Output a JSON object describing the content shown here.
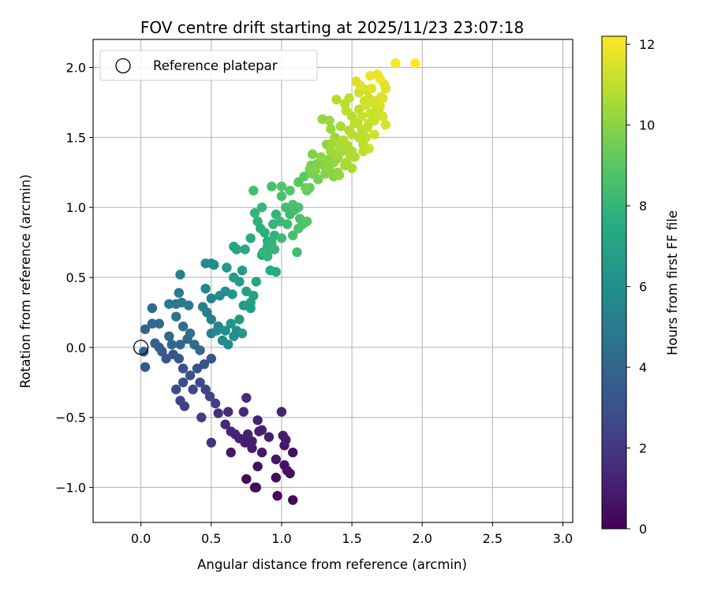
{
  "chart_data": {
    "type": "scatter",
    "title": "FOV centre drift starting at 2025/11/23 23:07:18",
    "xlabel": "Angular distance from reference (arcmin)",
    "ylabel": "Rotation from reference (arcmin)",
    "xlim": [
      -0.34,
      3.07
    ],
    "ylim": [
      -1.25,
      2.2
    ],
    "xticks": [
      0.0,
      0.5,
      1.0,
      1.5,
      2.0,
      2.5,
      3.0
    ],
    "xtick_labels": [
      "0.0",
      "0.5",
      "1.0",
      "1.5",
      "2.0",
      "2.5",
      "3.0"
    ],
    "yticks": [
      -1.0,
      -0.5,
      0.0,
      0.5,
      1.0,
      1.5,
      2.0
    ],
    "ytick_labels": [
      "−1.0",
      "−0.5",
      "0.0",
      "0.5",
      "1.0",
      "1.5",
      "2.0"
    ],
    "grid": true,
    "legend": {
      "placement": "top-left",
      "entries": [
        {
          "label": "Reference platepar",
          "marker": "open-circle"
        }
      ]
    },
    "reference_point": {
      "x": 0.0,
      "y": 0.0
    },
    "colorbar": {
      "label": "Hours from first FF file",
      "colormap": "viridis",
      "range": [
        0,
        12.2
      ],
      "ticks": [
        0,
        2,
        4,
        6,
        8,
        10,
        12
      ],
      "tick_labels": [
        "0",
        "2",
        "4",
        "6",
        "8",
        "10",
        "12"
      ]
    },
    "points": [
      [
        0.75,
        -0.94,
        0.3
      ],
      [
        0.81,
        -1.0,
        0.4
      ],
      [
        0.83,
        -0.85,
        0.5
      ],
      [
        0.97,
        -1.06,
        0.3
      ],
      [
        1.08,
        -1.09,
        0.2
      ],
      [
        0.96,
        -0.93,
        0.4
      ],
      [
        1.06,
        -0.9,
        0.5
      ],
      [
        1.02,
        -0.84,
        0.6
      ],
      [
        0.96,
        -0.8,
        0.7
      ],
      [
        1.04,
        -0.88,
        0.6
      ],
      [
        1.08,
        -0.75,
        0.5
      ],
      [
        1.02,
        -0.7,
        0.8
      ],
      [
        1.03,
        -0.66,
        0.9
      ],
      [
        1.01,
        -0.63,
        1.0
      ],
      [
        0.91,
        -0.64,
        1.0
      ],
      [
        0.84,
        -0.6,
        1.1
      ],
      [
        0.86,
        -0.75,
        0.8
      ],
      [
        0.79,
        -0.72,
        0.9
      ],
      [
        0.79,
        -0.67,
        1.0
      ],
      [
        0.74,
        -0.68,
        1.0
      ],
      [
        0.7,
        -0.65,
        1.1
      ],
      [
        0.67,
        -0.62,
        1.2
      ],
      [
        0.64,
        -0.6,
        1.3
      ],
      [
        0.64,
        -0.75,
        0.8
      ],
      [
        0.6,
        -0.55,
        1.4
      ],
      [
        0.55,
        -0.47,
        1.6
      ],
      [
        0.62,
        -0.46,
        1.5
      ],
      [
        0.73,
        -0.46,
        1.4
      ],
      [
        0.75,
        -0.36,
        1.5
      ],
      [
        0.83,
        -0.52,
        1.2
      ],
      [
        0.86,
        -0.59,
        1.1
      ],
      [
        1.0,
        -0.46,
        1.2
      ],
      [
        0.82,
        -1.0,
        0.35
      ],
      [
        0.76,
        -0.62,
        1.15
      ],
      [
        0.5,
        -0.68,
        1.8
      ],
      [
        0.53,
        -0.4,
        2.3
      ],
      [
        0.49,
        -0.35,
        2.5
      ],
      [
        0.43,
        -0.5,
        2.2
      ],
      [
        0.37,
        -0.3,
        2.6
      ],
      [
        0.31,
        -0.42,
        2.3
      ],
      [
        0.28,
        -0.38,
        2.5
      ],
      [
        0.25,
        -0.3,
        2.7
      ],
      [
        0.3,
        -0.25,
        2.9
      ],
      [
        0.35,
        -0.2,
        3.0
      ],
      [
        0.4,
        -0.15,
        3.1
      ],
      [
        0.45,
        -0.12,
        3.2
      ],
      [
        0.5,
        -0.08,
        3.3
      ],
      [
        0.42,
        -0.25,
        2.8
      ],
      [
        0.46,
        -0.3,
        2.6
      ],
      [
        0.3,
        -0.15,
        3.0
      ],
      [
        0.27,
        -0.08,
        3.2
      ],
      [
        0.23,
        -0.05,
        3.3
      ],
      [
        0.18,
        -0.08,
        3.3
      ],
      [
        0.15,
        -0.03,
        3.5
      ],
      [
        0.13,
        0.0,
        3.6
      ],
      [
        0.1,
        0.03,
        3.7
      ],
      [
        0.03,
        -0.14,
        3.4
      ],
      [
        0.02,
        -0.03,
        3.8
      ],
      [
        0.03,
        0.13,
        4.0
      ],
      [
        0.08,
        0.17,
        4.1
      ],
      [
        0.13,
        0.17,
        4.2
      ],
      [
        0.08,
        0.28,
        4.3
      ],
      [
        0.2,
        0.08,
        4.1
      ],
      [
        0.22,
        0.02,
        4.0
      ],
      [
        0.28,
        0.02,
        4.1
      ],
      [
        0.33,
        0.06,
        4.2
      ],
      [
        0.38,
        0.02,
        4.2
      ],
      [
        0.42,
        -0.02,
        4.1
      ],
      [
        0.35,
        0.1,
        4.4
      ],
      [
        0.3,
        0.15,
        4.5
      ],
      [
        0.25,
        0.22,
        4.6
      ],
      [
        0.29,
        0.32,
        4.8
      ],
      [
        0.25,
        0.31,
        4.9
      ],
      [
        0.27,
        0.39,
        5.0
      ],
      [
        0.34,
        0.3,
        5.0
      ],
      [
        0.28,
        0.52,
        5.2
      ],
      [
        0.2,
        0.31,
        4.9
      ],
      [
        0.47,
        0.25,
        5.2
      ],
      [
        0.5,
        0.35,
        5.4
      ],
      [
        0.46,
        0.42,
        5.5
      ],
      [
        0.44,
        0.29,
        5.3
      ],
      [
        0.5,
        0.2,
        5.3
      ],
      [
        0.55,
        0.15,
        5.5
      ],
      [
        0.5,
        0.1,
        5.2
      ],
      [
        0.46,
        0.6,
        5.8
      ],
      [
        0.5,
        0.6,
        5.9
      ],
      [
        0.52,
        0.59,
        6.0
      ],
      [
        0.6,
        0.4,
        6.2
      ],
      [
        0.65,
        0.38,
        6.3
      ],
      [
        0.56,
        0.37,
        6.0
      ],
      [
        0.61,
        0.57,
        6.4
      ],
      [
        0.66,
        0.5,
        6.5
      ],
      [
        0.7,
        0.47,
        6.6
      ],
      [
        0.72,
        0.55,
        6.7
      ],
      [
        0.75,
        0.4,
        6.8
      ],
      [
        0.78,
        0.32,
        6.9
      ],
      [
        0.8,
        0.37,
        6.9
      ],
      [
        0.78,
        0.28,
        6.8
      ],
      [
        0.7,
        0.2,
        6.5
      ],
      [
        0.64,
        0.17,
        6.2
      ],
      [
        0.6,
        0.12,
        6.0
      ],
      [
        0.58,
        0.05,
        5.8
      ],
      [
        0.54,
        0.12,
        5.7
      ],
      [
        0.62,
        0.02,
        5.8
      ],
      [
        0.68,
        0.12,
        6.2
      ],
      [
        0.72,
        0.1,
        6.4
      ],
      [
        0.66,
        0.08,
        6.0
      ],
      [
        0.73,
        0.3,
        6.6
      ],
      [
        0.82,
        0.47,
        7.1
      ],
      [
        0.86,
        0.66,
        7.3
      ],
      [
        0.92,
        0.55,
        7.4
      ],
      [
        0.96,
        0.54,
        7.5
      ],
      [
        0.92,
        0.7,
        7.6
      ],
      [
        0.9,
        0.76,
        7.6
      ],
      [
        0.88,
        0.82,
        7.6
      ],
      [
        0.78,
        0.78,
        7.4
      ],
      [
        0.74,
        0.7,
        7.3
      ],
      [
        0.68,
        0.7,
        7.2
      ],
      [
        0.66,
        0.72,
        7.2
      ],
      [
        0.83,
        0.9,
        7.8
      ],
      [
        0.85,
        0.85,
        7.7
      ],
      [
        0.9,
        0.72,
        7.7
      ],
      [
        0.95,
        0.8,
        7.9
      ],
      [
        0.96,
        0.95,
        8.0
      ],
      [
        0.99,
        0.9,
        8.2
      ],
      [
        1.04,
        0.88,
        8.3
      ],
      [
        1.06,
        0.95,
        8.4
      ],
      [
        1.03,
        1.0,
        8.5
      ],
      [
        1.08,
        1.02,
        8.6
      ],
      [
        1.12,
        1.0,
        8.7
      ],
      [
        1.13,
        0.92,
        8.7
      ],
      [
        1.15,
        0.88,
        8.8
      ],
      [
        1.18,
        0.9,
        8.9
      ],
      [
        1.12,
        0.85,
        8.7
      ],
      [
        1.08,
        0.8,
        8.5
      ],
      [
        1.0,
        0.78,
        8.3
      ],
      [
        0.95,
        0.7,
        8.1
      ],
      [
        0.9,
        0.65,
        8.0
      ],
      [
        0.87,
        0.68,
        8.0
      ],
      [
        0.93,
        0.75,
        8.0
      ],
      [
        1.11,
        0.68,
        8.4
      ],
      [
        1.0,
        1.15,
        8.8
      ],
      [
        1.06,
        1.12,
        8.9
      ],
      [
        1.12,
        1.18,
        9.0
      ],
      [
        1.16,
        1.22,
        9.1
      ],
      [
        1.2,
        1.14,
        9.2
      ],
      [
        1.18,
        1.12,
        9.2
      ],
      [
        1.0,
        1.08,
        8.6
      ],
      [
        0.93,
        1.15,
        8.6
      ],
      [
        0.8,
        1.12,
        8.5
      ],
      [
        0.86,
        1.0,
        8.1
      ],
      [
        0.81,
        0.96,
        8.0
      ],
      [
        1.09,
        0.98,
        8.5
      ],
      [
        0.94,
        0.88,
        8.0
      ],
      [
        1.17,
        1.14,
        9.5
      ],
      [
        1.22,
        1.24,
        9.6
      ],
      [
        1.2,
        1.27,
        9.7
      ],
      [
        1.21,
        1.3,
        9.7
      ],
      [
        1.25,
        1.31,
        9.8
      ],
      [
        1.22,
        1.38,
        9.8
      ],
      [
        1.26,
        1.2,
        9.6
      ],
      [
        1.3,
        1.3,
        9.9
      ],
      [
        1.33,
        1.34,
        10.0
      ],
      [
        1.32,
        1.45,
        10.1
      ],
      [
        1.29,
        1.63,
        10.2
      ],
      [
        1.34,
        1.62,
        10.3
      ],
      [
        1.35,
        1.56,
        10.3
      ],
      [
        1.38,
        1.5,
        10.4
      ],
      [
        1.37,
        1.22,
        10.0
      ],
      [
        1.4,
        1.25,
        10.1
      ],
      [
        1.4,
        1.35,
        10.3
      ],
      [
        1.45,
        1.3,
        10.5
      ],
      [
        1.43,
        1.4,
        10.5
      ],
      [
        1.47,
        1.44,
        10.6
      ],
      [
        1.5,
        1.4,
        10.7
      ],
      [
        1.42,
        1.58,
        10.6
      ],
      [
        1.48,
        1.55,
        10.7
      ],
      [
        1.5,
        1.65,
        10.8
      ],
      [
        1.52,
        1.6,
        10.9
      ],
      [
        1.55,
        1.7,
        11.0
      ],
      [
        1.57,
        1.55,
        11.0
      ],
      [
        1.6,
        1.5,
        11.1
      ],
      [
        1.62,
        1.6,
        11.2
      ],
      [
        1.58,
        1.45,
        11.0
      ],
      [
        1.5,
        1.28,
        10.6
      ],
      [
        1.46,
        1.32,
        10.6
      ],
      [
        1.39,
        1.77,
        10.8
      ],
      [
        1.45,
        1.74,
        10.9
      ],
      [
        1.48,
        1.78,
        11.0
      ],
      [
        1.55,
        1.82,
        11.2
      ],
      [
        1.6,
        1.84,
        11.3
      ],
      [
        1.62,
        1.78,
        11.3
      ],
      [
        1.65,
        1.75,
        11.4
      ],
      [
        1.67,
        1.7,
        11.4
      ],
      [
        1.7,
        1.72,
        11.5
      ],
      [
        1.72,
        1.78,
        11.6
      ],
      [
        1.74,
        1.85,
        11.6
      ],
      [
        1.73,
        1.88,
        11.7
      ],
      [
        1.72,
        1.65,
        11.5
      ],
      [
        1.74,
        1.59,
        11.5
      ],
      [
        1.66,
        1.52,
        11.3
      ],
      [
        1.62,
        1.42,
        11.2
      ],
      [
        1.58,
        1.4,
        11.1
      ],
      [
        1.55,
        1.5,
        11.0
      ],
      [
        1.53,
        1.9,
        11.5
      ],
      [
        1.56,
        1.87,
        11.6
      ],
      [
        1.64,
        1.85,
        11.6
      ],
      [
        1.68,
        1.95,
        11.8
      ],
      [
        1.7,
        1.92,
        11.9
      ],
      [
        1.63,
        1.94,
        11.9
      ],
      [
        1.81,
        2.03,
        12.1
      ],
      [
        1.95,
        2.03,
        12.2
      ],
      [
        1.71,
        1.79,
        11.6
      ],
      [
        1.67,
        1.76,
        11.5
      ],
      [
        1.6,
        1.73,
        11.4
      ],
      [
        1.57,
        1.65,
        11.2
      ],
      [
        1.54,
        1.6,
        11.1
      ],
      [
        1.5,
        1.52,
        10.9
      ],
      [
        1.44,
        1.48,
        10.8
      ],
      [
        1.41,
        1.44,
        10.7
      ],
      [
        1.36,
        1.46,
        10.5
      ],
      [
        1.35,
        1.4,
        10.4
      ],
      [
        1.28,
        1.36,
        10.1
      ],
      [
        1.31,
        1.24,
        9.9
      ],
      [
        1.34,
        1.27,
        10.0
      ],
      [
        1.63,
        1.67,
        11.2
      ],
      [
        1.59,
        1.76,
        11.3
      ],
      [
        1.46,
        1.69,
        10.9
      ],
      [
        1.41,
        1.23,
        10.2
      ],
      [
        1.37,
        1.32,
        10.2
      ],
      [
        1.52,
        1.36,
        10.7
      ],
      [
        1.69,
        1.68,
        11.3
      ],
      [
        1.66,
        1.62,
        11.2
      ],
      [
        1.61,
        1.57,
        11.1
      ],
      [
        1.49,
        1.37,
        10.7
      ],
      [
        1.43,
        1.43,
        10.6
      ],
      [
        1.38,
        1.38,
        10.4
      ],
      [
        1.33,
        1.3,
        10.0
      ],
      [
        1.24,
        1.26,
        9.8
      ]
    ]
  }
}
